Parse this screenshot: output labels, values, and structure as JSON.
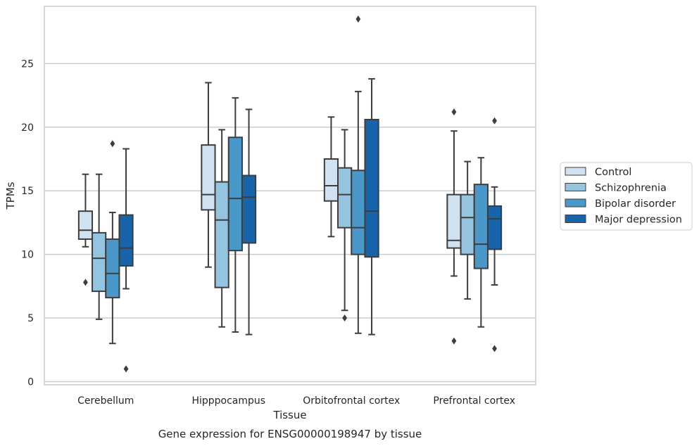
{
  "chart_data": {
    "type": "box",
    "xlabel": "Tissue",
    "ylabel": "TPMs",
    "caption": "Gene expression for ENSG00000198947 by tissue",
    "ylim": [
      -0.25,
      29.5
    ],
    "yticks": [
      0,
      5,
      10,
      15,
      20,
      25
    ],
    "grid": "horizontal",
    "legend_position": "right",
    "categories": [
      "Cerebellum",
      "Hipppocampus",
      "Orbitofrontal cortex",
      "Prefrontal cortex"
    ],
    "series": [
      {
        "name": "Control",
        "color": "#d0e1f2",
        "boxes": [
          {
            "whisker_low": 10.6,
            "q1": 11.2,
            "median": 11.9,
            "q3": 13.4,
            "whisker_high": 16.3,
            "outliers": [
              7.8
            ]
          },
          {
            "whisker_low": 9.0,
            "q1": 13.5,
            "median": 14.7,
            "q3": 18.6,
            "whisker_high": 23.5,
            "outliers": []
          },
          {
            "whisker_low": 11.4,
            "q1": 14.2,
            "median": 15.4,
            "q3": 17.5,
            "whisker_high": 20.8,
            "outliers": []
          },
          {
            "whisker_low": 8.3,
            "q1": 10.5,
            "median": 11.1,
            "q3": 14.7,
            "whisker_high": 19.7,
            "outliers": [
              21.2,
              3.2
            ]
          }
        ]
      },
      {
        "name": "Schizophrenia",
        "color": "#94c4df",
        "boxes": [
          {
            "whisker_low": 4.9,
            "q1": 7.1,
            "median": 9.7,
            "q3": 11.7,
            "whisker_high": 16.3,
            "outliers": []
          },
          {
            "whisker_low": 4.3,
            "q1": 7.4,
            "median": 12.7,
            "q3": 15.7,
            "whisker_high": 19.8,
            "outliers": []
          },
          {
            "whisker_low": 5.6,
            "q1": 12.1,
            "median": 14.7,
            "q3": 16.8,
            "whisker_high": 19.8,
            "outliers": [
              5.0
            ]
          },
          {
            "whisker_low": 6.5,
            "q1": 10.0,
            "median": 12.9,
            "q3": 14.7,
            "whisker_high": 17.3,
            "outliers": []
          }
        ]
      },
      {
        "name": "Bipolar disorder",
        "color": "#4a98c9",
        "boxes": [
          {
            "whisker_low": 3.0,
            "q1": 6.6,
            "median": 8.5,
            "q3": 11.2,
            "whisker_high": 13.3,
            "outliers": [
              18.7
            ]
          },
          {
            "whisker_low": 3.9,
            "q1": 10.3,
            "median": 14.4,
            "q3": 19.2,
            "whisker_high": 22.3,
            "outliers": []
          },
          {
            "whisker_low": 3.8,
            "q1": 10.0,
            "median": 12.1,
            "q3": 16.6,
            "whisker_high": 22.8,
            "outliers": [
              28.5
            ]
          },
          {
            "whisker_low": 4.3,
            "q1": 8.9,
            "median": 10.8,
            "q3": 15.5,
            "whisker_high": 17.6,
            "outliers": []
          }
        ]
      },
      {
        "name": "Major depression",
        "color": "#1764ab",
        "boxes": [
          {
            "whisker_low": 7.3,
            "q1": 9.1,
            "median": 10.5,
            "q3": 13.1,
            "whisker_high": 18.3,
            "outliers": [
              1.0
            ]
          },
          {
            "whisker_low": 3.7,
            "q1": 10.9,
            "median": 14.5,
            "q3": 16.2,
            "whisker_high": 21.4,
            "outliers": []
          },
          {
            "whisker_low": 3.7,
            "q1": 9.8,
            "median": 13.4,
            "q3": 20.6,
            "whisker_high": 23.8,
            "outliers": []
          },
          {
            "whisker_low": 7.6,
            "q1": 10.4,
            "median": 12.8,
            "q3": 13.8,
            "whisker_high": 15.3,
            "outliers": [
              20.5,
              2.6
            ]
          }
        ]
      }
    ]
  }
}
